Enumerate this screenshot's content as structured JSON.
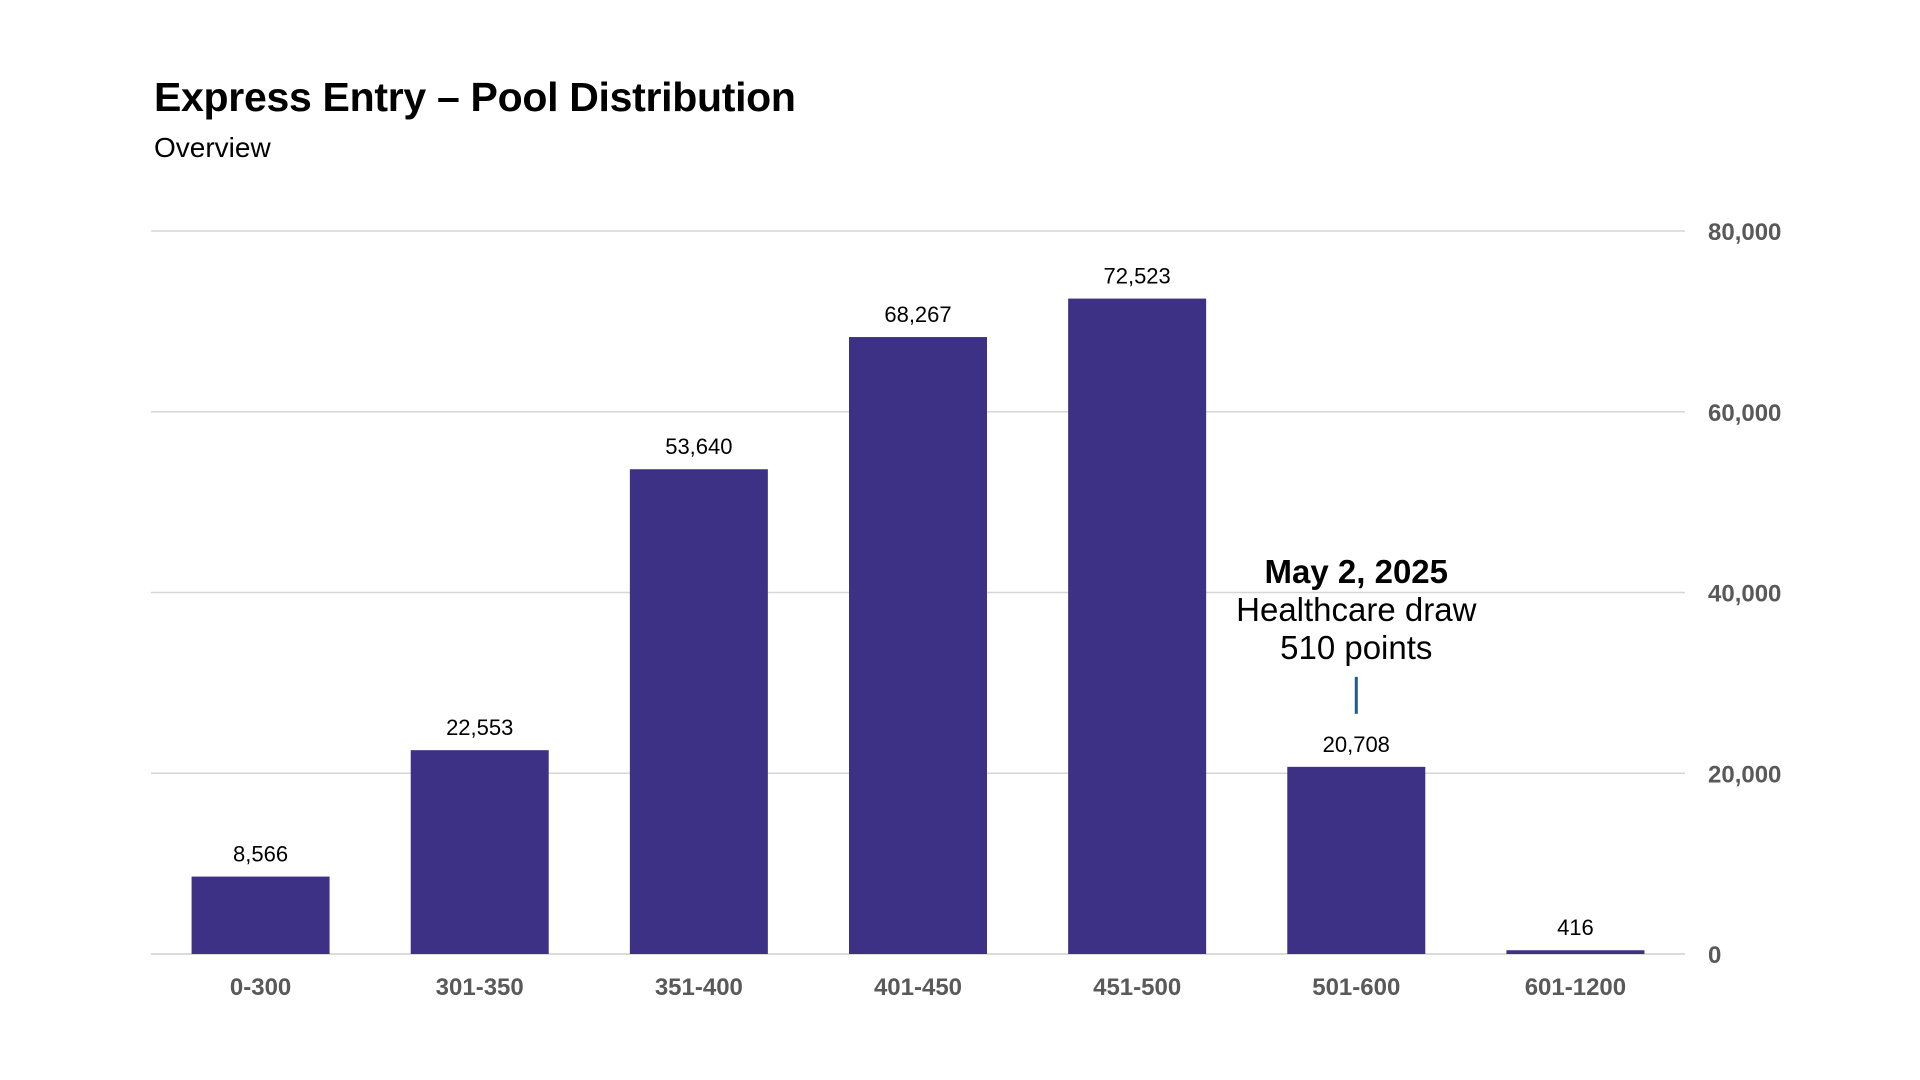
{
  "header": {
    "title": "Express Entry – Pool Distribution",
    "subtitle": "Overview"
  },
  "annotation": {
    "category": "501-600",
    "title": "May 2, 2025",
    "lines": [
      "Healthcare draw",
      "510 points"
    ]
  },
  "colors": {
    "bar": "#3d3186",
    "gridline": "#d6d6d6",
    "tick_text": "#595959",
    "leader_line": "#1f5a8c"
  },
  "chart_data": {
    "type": "bar",
    "title": "Express Entry – Pool Distribution",
    "subtitle": "Overview",
    "categories": [
      "0-300",
      "301-350",
      "351-400",
      "401-450",
      "451-500",
      "501-600",
      "601-1200"
    ],
    "values": [
      8566,
      22553,
      53640,
      68267,
      72523,
      20708,
      416
    ],
    "value_labels": [
      "8,566",
      "22,553",
      "53,640",
      "68,267",
      "72,523",
      "20,708",
      "416"
    ],
    "ylim": [
      0,
      80000
    ],
    "yticks": [
      0,
      20000,
      40000,
      60000,
      80000
    ],
    "ytick_labels": [
      "0",
      "20,000",
      "40,000",
      "60,000",
      "80,000"
    ],
    "y_axis_side": "right",
    "grid": true,
    "legend": "none"
  }
}
